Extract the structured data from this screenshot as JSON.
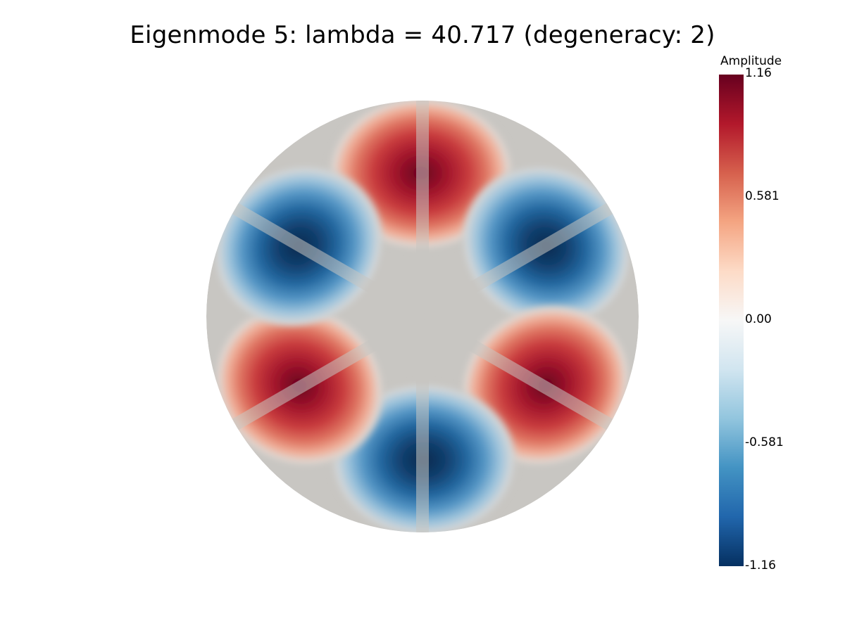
{
  "title": "Eigenmode 5: lambda = 40.717 (degeneracy: 2)",
  "colorbar": {
    "title": "Amplitude",
    "ticks": [
      "1.16",
      "0.581",
      "0.00",
      "-0.581",
      "-1.16"
    ],
    "colormap": [
      "#67001f",
      "#b2182b",
      "#d6604d",
      "#f4a582",
      "#fddbc7",
      "#f7f7f7",
      "#d1e5f0",
      "#92c5de",
      "#4393c3",
      "#2166ac",
      "#053061"
    ]
  },
  "visualization": {
    "field": "eigenmode amplitude",
    "domain_shape": "disk",
    "lobes": 6,
    "value_range": [
      -1.16,
      1.16
    ],
    "lobe_signs": [
      "positive",
      "negative",
      "positive",
      "negative",
      "positive",
      "negative"
    ],
    "colors": {
      "positive": "#67001f",
      "negative": "#053061",
      "zero": "#c8c6c2"
    }
  }
}
